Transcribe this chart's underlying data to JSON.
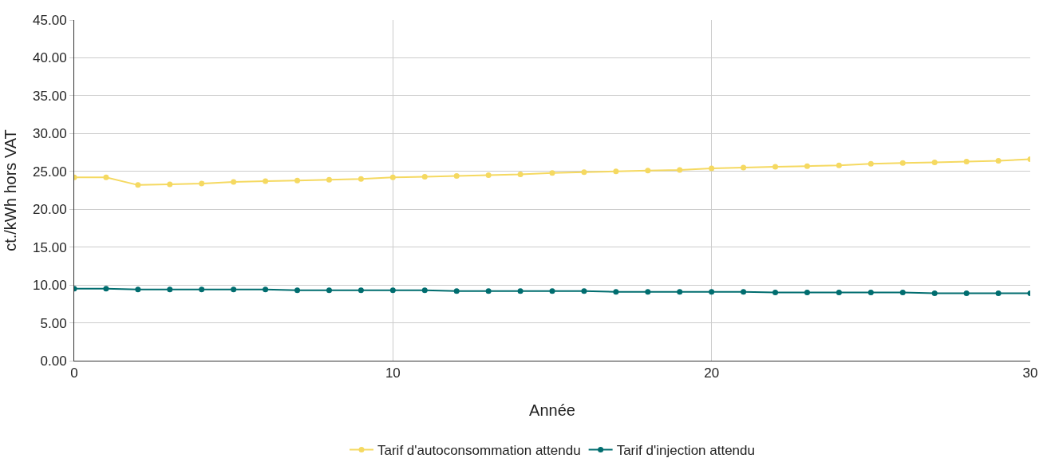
{
  "chart_data": {
    "type": "line",
    "xlabel": "Année",
    "ylabel": "ct./kWh hors VAT",
    "x": [
      0,
      1,
      2,
      3,
      4,
      5,
      6,
      7,
      8,
      9,
      10,
      11,
      12,
      13,
      14,
      15,
      16,
      17,
      18,
      19,
      20,
      21,
      22,
      23,
      24,
      25,
      26,
      27,
      28,
      29,
      30
    ],
    "series": [
      {
        "name": "Tarif d'autoconsommation attendu",
        "color": "#f5d961",
        "values": [
          24.2,
          24.2,
          23.2,
          23.3,
          23.4,
          23.6,
          23.7,
          23.8,
          23.9,
          24.0,
          24.2,
          24.3,
          24.4,
          24.5,
          24.6,
          24.8,
          24.9,
          25.0,
          25.1,
          25.2,
          25.4,
          25.5,
          25.6,
          25.7,
          25.8,
          26.0,
          26.1,
          26.2,
          26.3,
          26.4,
          26.6
        ]
      },
      {
        "name": "Tarif d'injection attendu",
        "color": "#006d6f",
        "values": [
          9.5,
          9.5,
          9.4,
          9.4,
          9.4,
          9.4,
          9.4,
          9.3,
          9.3,
          9.3,
          9.3,
          9.3,
          9.2,
          9.2,
          9.2,
          9.2,
          9.2,
          9.1,
          9.1,
          9.1,
          9.1,
          9.1,
          9.0,
          9.0,
          9.0,
          9.0,
          9.0,
          8.9,
          8.9,
          8.9,
          8.9
        ]
      }
    ],
    "xlim": [
      0,
      30
    ],
    "xticks": [
      0,
      10,
      20,
      30
    ],
    "ylim": [
      0,
      45
    ],
    "yticks": [
      {
        "value": 0,
        "label": "0.00"
      },
      {
        "value": 5,
        "label": "5.00"
      },
      {
        "value": 10,
        "label": "10.00"
      },
      {
        "value": 15,
        "label": "15.00"
      },
      {
        "value": 20,
        "label": "20.00"
      },
      {
        "value": 25,
        "label": "25.00"
      },
      {
        "value": 30,
        "label": "30.00"
      },
      {
        "value": 35,
        "label": "35.00"
      },
      {
        "value": 40,
        "label": "40.00"
      },
      {
        "value": 45,
        "label": "45.00"
      }
    ],
    "grid": true,
    "legend": "bottom",
    "marker": "circle",
    "line_style": "solid"
  }
}
